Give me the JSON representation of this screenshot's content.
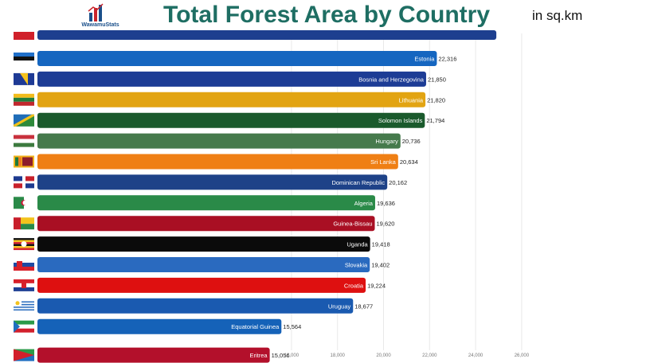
{
  "header": {
    "logo_text": "WawamuStats",
    "title": "Total Forest Area by Country",
    "unit": "in sq.km"
  },
  "colors": {
    "title": "#1e6e63",
    "logo": "#1a4f8a"
  },
  "chart_data": {
    "type": "bar",
    "orientation": "horizontal",
    "title": "Total Forest Area by Country",
    "unit": "in sq.km",
    "xlim": [
      0,
      26000
    ],
    "tick_labels": [
      "16,000",
      "18,000",
      "20,000",
      "22,000",
      "24,000",
      "26,000"
    ],
    "tick_values": [
      16000,
      18000,
      20000,
      22000,
      24000,
      26000
    ],
    "grid": true,
    "top_partial_bar": {
      "value": 24900,
      "color": "#1d3f8f",
      "flag": "red-flag"
    },
    "categories": [
      "Estonia",
      "Bosnia and Herzegovina",
      "Lithuania",
      "Solomon Islands",
      "Hungary",
      "Sri Lanka",
      "Dominican Republic",
      "Algeria",
      "Guinea-Bissau",
      "Uganda",
      "Slovakia",
      "Croatia",
      "Uruguay",
      "Equatorial Guinea",
      "Eritrea"
    ],
    "values": [
      22316,
      21850,
      21820,
      21794,
      20736,
      20634,
      20162,
      19636,
      19620,
      19418,
      19402,
      19224,
      18677,
      15564,
      15056
    ],
    "value_labels": [
      "22,316",
      "21,850",
      "21,820",
      "21,794",
      "20,736",
      "20,634",
      "20,162",
      "19,636",
      "19,620",
      "19,418",
      "19,402",
      "19,224",
      "18,677",
      "15,564",
      "15,056"
    ],
    "bar_colors": [
      "#1566c0",
      "#1d3c95",
      "#e2a412",
      "#1a5a2c",
      "#467a4c",
      "#ef7f14",
      "#1e4288",
      "#2a8a48",
      "#a90f23",
      "#0b0b0b",
      "#2a6abf",
      "#de1010",
      "#1a5ab0",
      "#1562b8",
      "#b3102b"
    ],
    "flags": [
      "estonia-flag",
      "bosnia-flag",
      "lithuania-flag",
      "solomon-islands-flag",
      "hungary-flag",
      "sri-lanka-flag",
      "dominican-republic-flag",
      "algeria-flag",
      "guinea-bissau-flag",
      "uganda-flag",
      "slovakia-flag",
      "croatia-flag",
      "uruguay-flag",
      "equatorial-guinea-flag",
      "eritrea-flag"
    ]
  }
}
